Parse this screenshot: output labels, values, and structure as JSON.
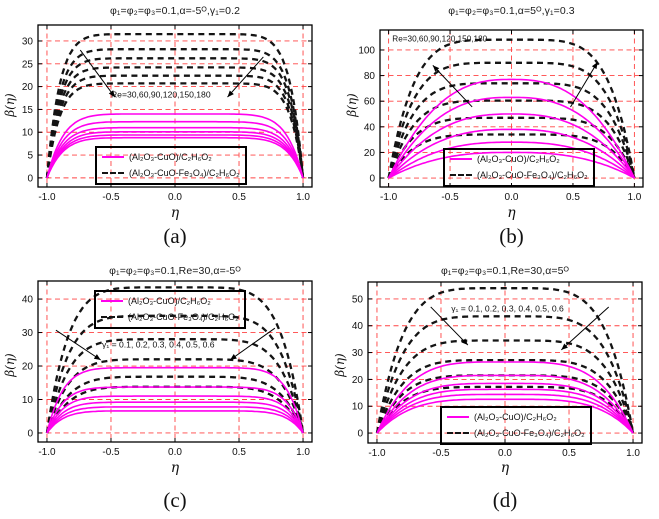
{
  "figure": {
    "background": "#ffffff"
  },
  "colors": {
    "grid": "#ff4343",
    "solid_series": "#ff00ee",
    "dashed_series": "#141414",
    "frame": "#000000",
    "text": "#1a1a1a"
  },
  "chart_data": [
    {
      "id": "a",
      "type": "line",
      "panel_label": "(a)",
      "title": "φ₁=φ₂=φ₃=0.1,α=-5ᴼ,γ₁=0.2",
      "xlabel": "η",
      "ylabel": "β(η)",
      "curve_parameter": "Re",
      "parameter_values": [
        30,
        60,
        90,
        120,
        150,
        180
      ],
      "annotation": {
        "text": "Re=30,60,90,120,150,180",
        "x": -0.5,
        "y": 17.6
      },
      "xticks": [
        -1.0,
        -0.5,
        0.0,
        0.5,
        1.0
      ],
      "yticks": [
        0,
        5,
        10,
        15,
        20,
        25,
        30
      ],
      "xlim": [
        -1.07,
        1.07
      ],
      "ylim": [
        -2,
        33.5
      ],
      "grid": true,
      "legend_position": "bottom-center",
      "legend": [
        "(Al₂O₃-CuO)/C₂H₆O₂",
        "(Al₂O₃-CuO-Fe₃O₄)/C₂H₆O₂"
      ],
      "series": [
        {
          "name": "(Al₂O₃-CuO)/C₂H₆O₂",
          "style": "solid",
          "peak_values": [
            14,
            12.3,
            11,
            10.1,
            9.4,
            8.8
          ],
          "shape_exponent": 8
        },
        {
          "name": "(Al₂O₃-CuO-Fe₃O₄)/C₂H₆O₂",
          "style": "dashed",
          "peak_values": [
            31.5,
            28.2,
            26.2,
            24.2,
            22.4,
            20.7
          ],
          "shape_exponent": 10
        }
      ],
      "arrows": [
        [
          -0.74,
          28.0,
          -0.47,
          17.7
        ],
        [
          0.69,
          26.5,
          0.41,
          17.7
        ]
      ]
    },
    {
      "id": "b",
      "type": "line",
      "panel_label": "(b)",
      "title": "φ₁=φ₂=φ₃=0.1,α=5ᴼ,γ₁=0.3",
      "xlabel": "η",
      "ylabel": "β(η)",
      "curve_parameter": "Re",
      "parameter_values": [
        30,
        60,
        90,
        120,
        150,
        180
      ],
      "annotation": {
        "text": "Re=30,60,90,120,150,180",
        "x": -0.97,
        "y": 106.5
      },
      "xticks": [
        -1.0,
        -0.5,
        0.0,
        0.5,
        1.0
      ],
      "yticks": [
        0,
        20,
        40,
        60,
        80,
        100
      ],
      "xlim": [
        -1.07,
        1.07
      ],
      "ylim": [
        -7,
        115.6
      ],
      "grid": true,
      "legend_position": "bottom-center",
      "legend": [
        "(Al₂O₃-CuO)/C₂H₆O₂",
        "(Al₂O₃-CuO-Fe₃O₄)/C₂H₆O₂"
      ],
      "series": [
        {
          "name": "(Al₂O₃-CuO)/C₂H₆O₂",
          "style": "solid",
          "peak_values": [
            20,
            28,
            38,
            50,
            63,
            77
          ],
          "shape_exponent": 2.6
        },
        {
          "name": "(Al₂O₃-CuO-Fe₃O₄)/C₂H₆O₂",
          "style": "dashed",
          "peak_values": [
            34,
            47,
            60.5,
            74,
            90,
            108
          ],
          "shape_exponent": 5
        }
      ],
      "arrows": [
        [
          -0.32,
          55.5,
          -0.64,
          88
        ],
        [
          0.48,
          55.5,
          0.7,
          90.5
        ]
      ]
    },
    {
      "id": "c",
      "type": "line",
      "panel_label": "(c)",
      "title": "φ₁=φ₂=φ₃=0.1,Re=30,α=-5ᴼ",
      "xlabel": "η",
      "ylabel": "β(η)",
      "curve_parameter": "γ₁",
      "parameter_values": [
        0.1,
        0.2,
        0.3,
        0.4,
        0.5,
        0.6
      ],
      "annotation": {
        "text": "γ₁ = 0.1, 0.2, 0.3, 0.4, 0.5, 0.6",
        "x": -0.57,
        "y": 25.6
      },
      "xticks": [
        -1.0,
        -0.5,
        0.0,
        0.5,
        1.0
      ],
      "yticks": [
        0,
        10,
        20,
        30,
        40
      ],
      "xlim": [
        -1.07,
        1.07
      ],
      "ylim": [
        -2.7,
        45.4
      ],
      "grid": true,
      "legend_position": "top-center",
      "legend": [
        "(Al₂O₃-CuO)/C₂H₆O₂",
        "(Al₂O₃-CuO-Fe₃O₄)/C₂H₆O₂"
      ],
      "series": [
        {
          "name": "(Al₂O₃-CuO)/C₂H₆O₂",
          "style": "solid",
          "peak_values": [
            19.5,
            13.7,
            11,
            9.2,
            7.8,
            6.6
          ],
          "shape_exponent": 8
        },
        {
          "name": "(Al₂O₃-CuO-Fe₃O₄)/C₂H₆O₂",
          "style": "dashed",
          "peak_values": [
            43.5,
            35,
            28,
            22,
            16.8,
            13.8
          ],
          "shape_exponent": 6
        }
      ],
      "arrows": [
        [
          -0.93,
          30.7,
          -0.58,
          21.8
        ],
        [
          0.78,
          31.3,
          0.43,
          21.8
        ]
      ]
    },
    {
      "id": "d",
      "type": "line",
      "panel_label": "(d)",
      "title": "φ₁=φ₂=φ₃=0.1,Re=30,α=5ᴼ",
      "xlabel": "η",
      "ylabel": "β(η)",
      "curve_parameter": "γ₁",
      "parameter_values": [
        0.1,
        0.2,
        0.3,
        0.4,
        0.5,
        0.6
      ],
      "annotation": {
        "text": "γ₁ = 0.1, 0.2, 0.3, 0.4, 0.5, 0.6",
        "x": -0.42,
        "y": 45.3
      },
      "xticks": [
        -1.0,
        -0.5,
        0.0,
        0.5,
        1.0
      ],
      "yticks": [
        0,
        10,
        20,
        30,
        40,
        50
      ],
      "xlim": [
        -1.07,
        1.07
      ],
      "ylim": [
        -3.7,
        56.3
      ],
      "grid": true,
      "legend_position": "bottom-center",
      "legend": [
        "(Al₂O₃-CuO)/C₂H₆O₂",
        "(Al₂O₃-CuO-Fe₃O₄)/C₂H₆O₂"
      ],
      "series": [
        {
          "name": "(Al₂O₃-CuO)/C₂H₆O₂",
          "style": "solid",
          "peak_values": [
            26.5,
            21.5,
            18.5,
            16.3,
            14.4,
            12.6
          ],
          "shape_exponent": 4
        },
        {
          "name": "(Al₂O₃-CuO-Fe₃O₄)/C₂H₆O₂",
          "style": "dashed",
          "peak_values": [
            54,
            43.5,
            34.5,
            27.2,
            21.5,
            17.2
          ],
          "shape_exponent": 5
        }
      ],
      "arrows": [
        [
          -0.58,
          47,
          -0.29,
          32.8
        ],
        [
          0.81,
          47,
          0.44,
          31
        ]
      ]
    }
  ]
}
